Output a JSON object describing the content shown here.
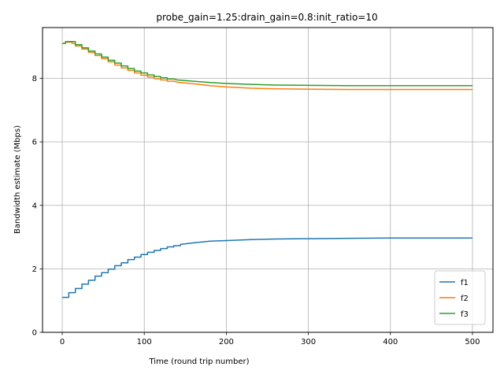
{
  "chart_data": {
    "type": "line",
    "title": "probe_gain=1.25:drain_gain=0.8:init_ratio=10",
    "xlabel": "Time (round trip number)",
    "ylabel": "Bandwidth estimate (Mbps)",
    "xlim": [
      -24,
      525
    ],
    "ylim": [
      0,
      9.6
    ],
    "xticks": [
      0,
      100,
      200,
      300,
      400,
      500
    ],
    "yticks": [
      0,
      2,
      4,
      6,
      8
    ],
    "grid": true,
    "legend_position": "lower-right",
    "series": [
      {
        "name": "f1",
        "color": "#1f77b4",
        "x": [
          0,
          8,
          8,
          16,
          16,
          24,
          24,
          32,
          32,
          40,
          40,
          48,
          48,
          56,
          56,
          64,
          64,
          72,
          72,
          80,
          80,
          88,
          88,
          96,
          96,
          104,
          104,
          112,
          112,
          120,
          120,
          128,
          128,
          136,
          136,
          144,
          144,
          160,
          180,
          200,
          230,
          260,
          300,
          350,
          400,
          450,
          500
        ],
        "y": [
          1.1,
          1.1,
          1.25,
          1.25,
          1.38,
          1.38,
          1.52,
          1.52,
          1.64,
          1.64,
          1.77,
          1.77,
          1.88,
          1.88,
          1.99,
          1.99,
          2.1,
          2.1,
          2.19,
          2.19,
          2.29,
          2.29,
          2.37,
          2.37,
          2.45,
          2.45,
          2.52,
          2.52,
          2.58,
          2.58,
          2.64,
          2.64,
          2.69,
          2.69,
          2.73,
          2.73,
          2.77,
          2.82,
          2.87,
          2.89,
          2.92,
          2.94,
          2.95,
          2.96,
          2.97,
          2.97,
          2.97
        ]
      },
      {
        "name": "f2",
        "color": "#ff7f0e",
        "x": [
          0,
          4,
          4,
          12,
          12,
          16,
          16,
          24,
          24,
          32,
          32,
          40,
          40,
          48,
          48,
          56,
          56,
          64,
          64,
          72,
          72,
          80,
          80,
          88,
          88,
          96,
          96,
          104,
          104,
          112,
          112,
          120,
          120,
          128,
          128,
          136,
          140,
          160,
          180,
          200,
          230,
          260,
          300,
          350,
          400,
          450,
          500
        ],
        "y": [
          9.1,
          9.1,
          9.14,
          9.14,
          9.1,
          9.1,
          9.02,
          9.02,
          8.92,
          8.92,
          8.82,
          8.82,
          8.72,
          8.72,
          8.62,
          8.62,
          8.52,
          8.52,
          8.42,
          8.42,
          8.33,
          8.33,
          8.25,
          8.25,
          8.17,
          8.17,
          8.1,
          8.1,
          8.04,
          8.04,
          7.99,
          7.99,
          7.95,
          7.95,
          7.91,
          7.91,
          7.88,
          7.83,
          7.77,
          7.73,
          7.69,
          7.67,
          7.66,
          7.65,
          7.65,
          7.65,
          7.65
        ]
      },
      {
        "name": "f3",
        "color": "#2ca02c",
        "x": [
          0,
          4,
          4,
          16,
          16,
          24,
          24,
          32,
          32,
          40,
          40,
          48,
          48,
          56,
          56,
          64,
          64,
          72,
          72,
          80,
          80,
          88,
          88,
          96,
          96,
          104,
          104,
          112,
          112,
          120,
          120,
          128,
          128,
          136,
          140,
          160,
          180,
          200,
          230,
          260,
          300,
          350,
          400,
          450,
          500
        ],
        "y": [
          9.1,
          9.1,
          9.16,
          9.16,
          9.06,
          9.06,
          8.96,
          8.96,
          8.86,
          8.86,
          8.77,
          8.77,
          8.67,
          8.67,
          8.57,
          8.57,
          8.48,
          8.48,
          8.39,
          8.39,
          8.31,
          8.31,
          8.23,
          8.23,
          8.17,
          8.17,
          8.11,
          8.11,
          8.06,
          8.06,
          8.02,
          8.02,
          7.98,
          7.98,
          7.95,
          7.91,
          7.87,
          7.84,
          7.81,
          7.79,
          7.78,
          7.77,
          7.77,
          7.77,
          7.77
        ]
      }
    ]
  }
}
